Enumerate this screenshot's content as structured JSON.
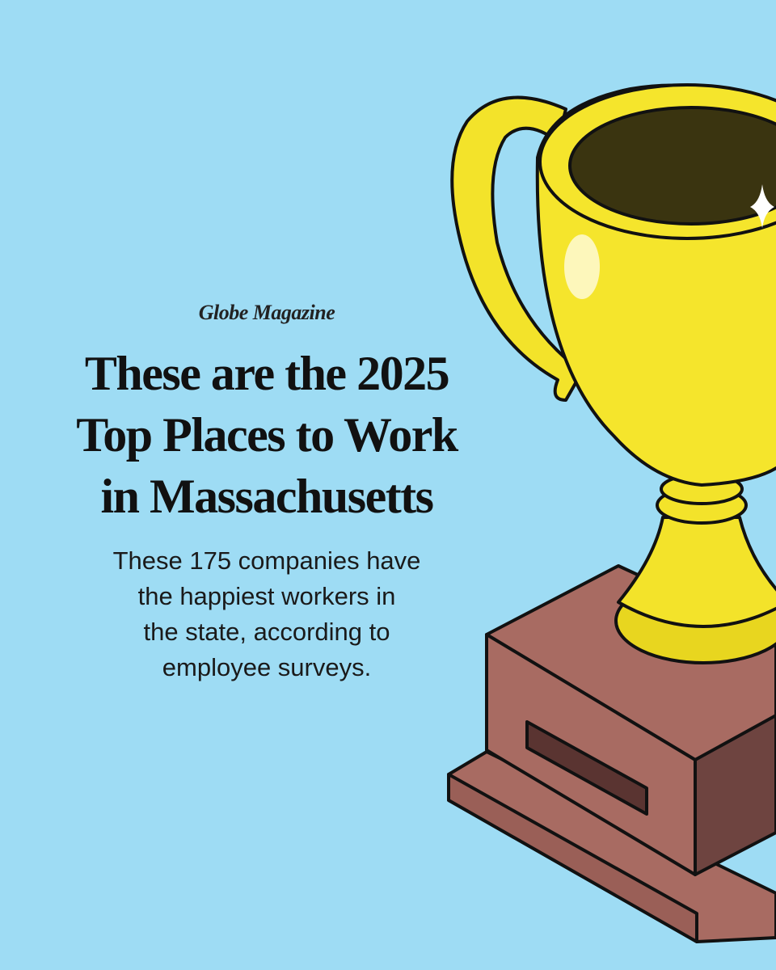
{
  "brand": "Globe Magazine",
  "headline": [
    "These are the 2025",
    "Top Places to Work",
    "in Massachusetts"
  ],
  "subheadline": [
    "These 175 companies have",
    "the happiest workers in",
    "the state, according to",
    "employee surveys."
  ]
}
